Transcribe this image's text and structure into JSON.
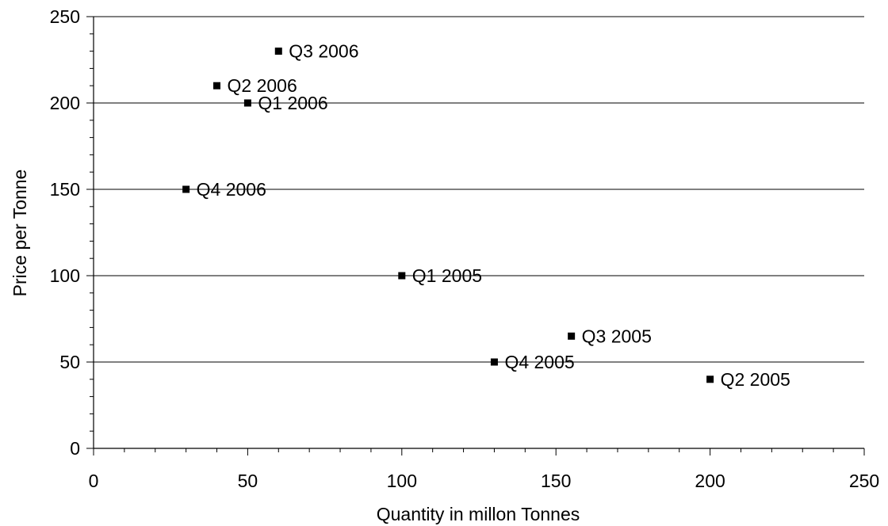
{
  "chart_data": {
    "type": "scatter",
    "title": "",
    "xlabel": "Quantity in millon Tonnes",
    "ylabel": "Price per Tonne",
    "xlim": [
      0,
      250
    ],
    "ylim": [
      0,
      250
    ],
    "x_ticks": [
      0,
      50,
      100,
      150,
      200,
      250
    ],
    "y_ticks": [
      0,
      50,
      100,
      150,
      200,
      250
    ],
    "grid": "horizontal major gridlines",
    "legend": "none",
    "marker": "square",
    "color": "#000000",
    "points": [
      {
        "label": "Q1 2005",
        "x": 100,
        "y": 100
      },
      {
        "label": "Q2 2005",
        "x": 200,
        "y": 40
      },
      {
        "label": "Q3 2005",
        "x": 155,
        "y": 65
      },
      {
        "label": "Q4 2005",
        "x": 130,
        "y": 50
      },
      {
        "label": "Q1 2006",
        "x": 50,
        "y": 200
      },
      {
        "label": "Q2 2006",
        "x": 40,
        "y": 210
      },
      {
        "label": "Q3 2006",
        "x": 60,
        "y": 230
      },
      {
        "label": "Q4 2006",
        "x": 30,
        "y": 150
      }
    ]
  }
}
